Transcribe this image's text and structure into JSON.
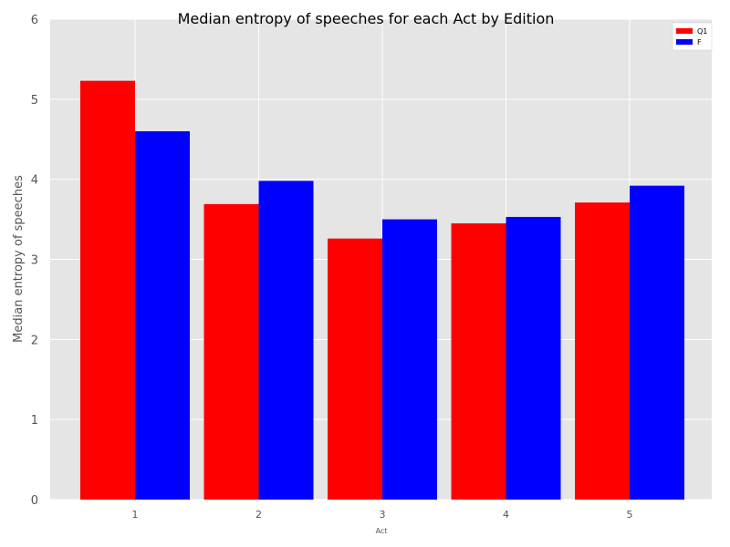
{
  "chart_data": {
    "type": "bar",
    "title": "Median entropy of speeches for each Act by Edition",
    "xlabel": "Act",
    "ylabel": "Median entropy of speeches",
    "categories": [
      "1",
      "2",
      "3",
      "4",
      "5"
    ],
    "series": [
      {
        "name": "Q1",
        "color": "#ff0000",
        "values": [
          5.23,
          3.69,
          3.26,
          3.45,
          3.71
        ]
      },
      {
        "name": "F",
        "color": "#0000ff",
        "values": [
          4.6,
          3.98,
          3.5,
          3.53,
          3.92
        ]
      }
    ],
    "ylim": [
      0,
      6
    ],
    "yticks": [
      "0",
      "1",
      "2",
      "3",
      "4",
      "5",
      "6"
    ],
    "grid": true,
    "legend_position": "top-right",
    "plot_background": "#e5e5e5",
    "grid_color": "#ffffff"
  }
}
